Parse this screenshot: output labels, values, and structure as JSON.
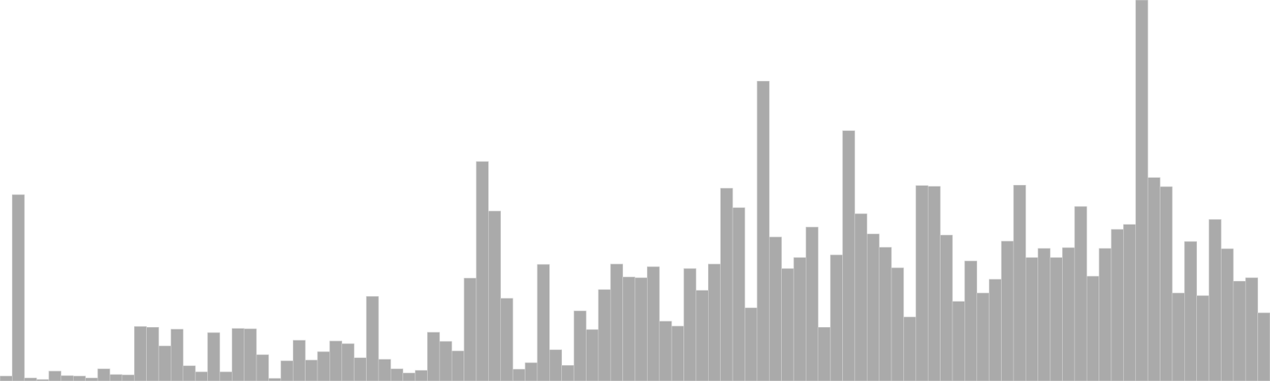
{
  "chart_data": {
    "type": "bar",
    "title": "",
    "xlabel": "",
    "ylabel": "",
    "grid": false,
    "legend": "none",
    "bar_color": "#aaaaaa",
    "ylim": [
      0,
      1000
    ],
    "values": [
      13,
      489,
      8,
      4,
      26,
      14,
      13,
      8,
      32,
      17,
      16,
      143,
      141,
      92,
      136,
      40,
      24,
      127,
      24,
      138,
      137,
      69,
      7,
      53,
      107,
      55,
      77,
      105,
      98,
      61,
      222,
      57,
      32,
      21,
      28,
      128,
      104,
      79,
      270,
      576,
      446,
      217,
      31,
      48,
      306,
      82,
      41,
      184,
      135,
      240,
      307,
      273,
      271,
      300,
      157,
      144,
      295,
      238,
      307,
      506,
      455,
      192,
      787,
      378,
      295,
      324,
      404,
      141,
      331,
      657,
      439,
      386,
      351,
      297,
      168,
      513,
      511,
      383,
      209,
      315,
      231,
      267,
      367,
      514,
      324,
      348,
      324,
      350,
      458,
      275,
      348,
      398,
      411,
      1000,
      534,
      510,
      231,
      366,
      224,
      424,
      347,
      262,
      271,
      179
    ]
  }
}
